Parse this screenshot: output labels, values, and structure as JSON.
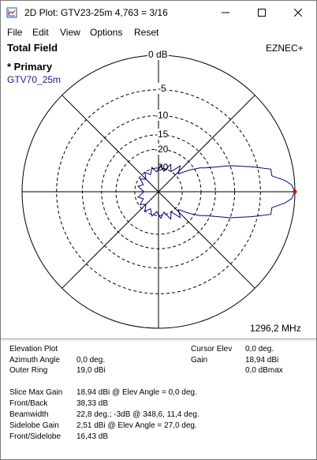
{
  "window": {
    "title": "2D Plot: GTV23-25m  4,763 = 3/16",
    "minimize_icon": "minimize-icon",
    "maximize_icon": "maximize-icon",
    "close_icon": "close-icon"
  },
  "menu": {
    "items": [
      "File",
      "Edit",
      "View",
      "Options",
      "Reset"
    ]
  },
  "plot": {
    "heading": "Total Field",
    "brand": "EZNEC+",
    "primary_label": "* Primary",
    "trace_name": "GTV70_25m",
    "trace_color": "#00008b",
    "frequency": "1296,2 MHz",
    "ring_labels": [
      "0 dB",
      "-5",
      "-10",
      "-15",
      "-20",
      "-30"
    ]
  },
  "chart_data": {
    "type": "polar",
    "title": "Total Field",
    "radial_unit": "dB",
    "radial_ticks": [
      0,
      -5,
      -10,
      -15,
      -20,
      -30
    ],
    "series": [
      {
        "name": "GTV70_25m",
        "color": "#00008b",
        "points": [
          {
            "angle": 0,
            "db": 0
          },
          {
            "angle": 3,
            "db": -0.4
          },
          {
            "angle": 5,
            "db": -1.2
          },
          {
            "angle": 8,
            "db": -3
          },
          {
            "angle": 11.4,
            "db": -3
          },
          {
            "angle": 15,
            "db": -6
          },
          {
            "angle": 20,
            "db": -10
          },
          {
            "angle": 24,
            "db": -14
          },
          {
            "angle": 27,
            "db": -16.4
          },
          {
            "angle": 30,
            "db": -18
          },
          {
            "angle": 35,
            "db": -22
          },
          {
            "angle": 42,
            "db": -28
          },
          {
            "angle": 50,
            "db": -24
          },
          {
            "angle": 58,
            "db": -30
          },
          {
            "angle": 66,
            "db": -26
          },
          {
            "angle": 75,
            "db": -32
          },
          {
            "angle": 85,
            "db": -28
          },
          {
            "angle": 95,
            "db": -33
          },
          {
            "angle": 105,
            "db": -29
          },
          {
            "angle": 115,
            "db": -34
          },
          {
            "angle": 125,
            "db": -30
          },
          {
            "angle": 135,
            "db": -35
          },
          {
            "angle": 145,
            "db": -31
          },
          {
            "angle": 155,
            "db": -36
          },
          {
            "angle": 165,
            "db": -32
          },
          {
            "angle": 180,
            "db": -38.3
          }
        ]
      }
    ]
  },
  "info": {
    "plot_type": "Elevation Plot",
    "azimuth_label": "Azimuth Angle",
    "azimuth_value": "0,0 deg.",
    "outer_ring_label": "Outer Ring",
    "outer_ring_value": "19,0 dBi",
    "cursor_elev_label": "Cursor Elev",
    "cursor_elev_value": "0,0 deg.",
    "gain_label": "Gain",
    "gain_value": "18,94 dBi",
    "gain_max_value": "0,0 dBmax",
    "slice_max_gain_label": "Slice Max Gain",
    "slice_max_gain_value": "18,94 dBi @ Elev Angle = 0,0 deg.",
    "front_back_label": "Front/Back",
    "front_back_value": "38,33 dB",
    "beamwidth_label": "Beamwidth",
    "beamwidth_value": "22,8 deg.; -3dB @ 348,6, 11,4 deg.",
    "sidelobe_gain_label": "Sidelobe Gain",
    "sidelobe_gain_value": "2,51 dBi @ Elev Angle = 27,0 deg.",
    "front_sidelobe_label": "Front/Sidelobe",
    "front_sidelobe_value": "16,43 dB"
  }
}
